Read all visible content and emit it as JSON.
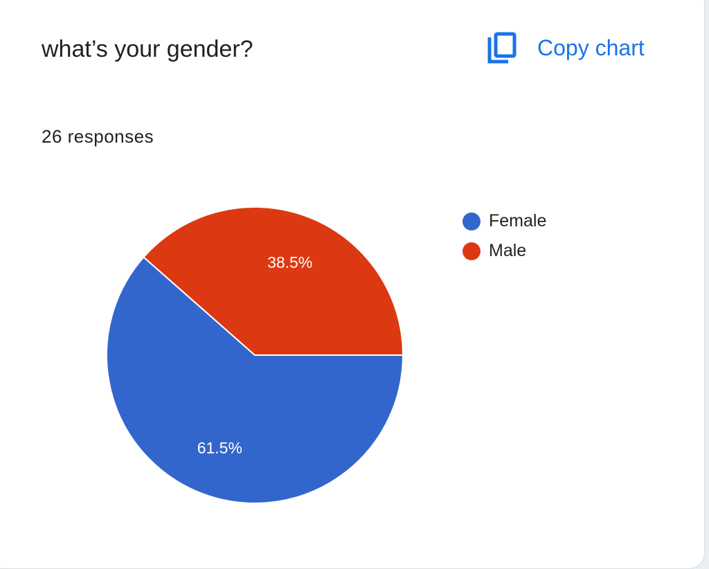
{
  "header": {
    "title": "what’s your gender?",
    "copy_label": "Copy chart"
  },
  "summary": {
    "responses": "26 responses"
  },
  "chart_data": {
    "type": "pie",
    "title": "what’s your gender?",
    "categories": [
      "Female",
      "Male"
    ],
    "values": [
      61.5,
      38.5
    ],
    "labels": [
      "61.5%",
      "38.5%"
    ],
    "colors": [
      "#3366cc",
      "#dc3912"
    ],
    "legend_position": "right"
  },
  "colors": {
    "accent": "#1a73e8"
  }
}
